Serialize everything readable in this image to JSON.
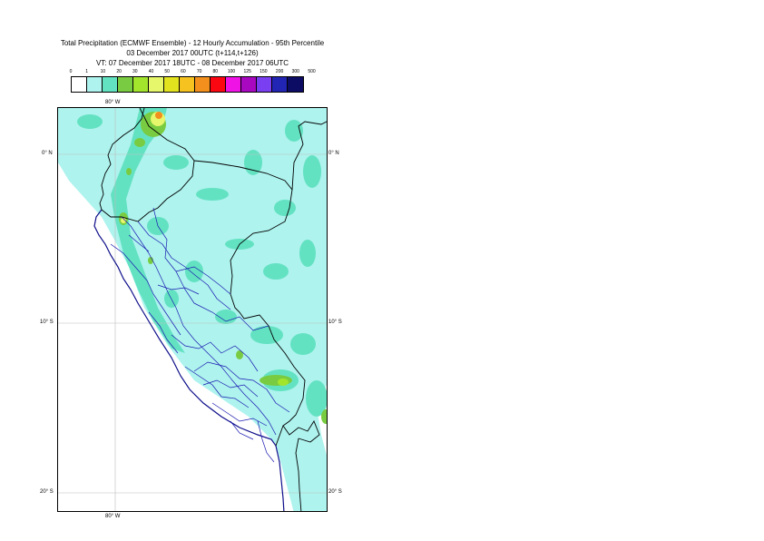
{
  "title": {
    "line1": "Total Precipitation (ECMWF Ensemble) - 12 Hourly Accumulation - 95th Percentile",
    "line2": "03 December 2017 00UTC (t+114,t+126)",
    "line3": "VT: 07 December 2017 18UTC - 08 December 2017 06UTC"
  },
  "legend": {
    "ticks": [
      "0",
      "1",
      "10",
      "20",
      "30",
      "40",
      "50",
      "60",
      "70",
      "80",
      "100",
      "125",
      "150",
      "200",
      "300",
      "500"
    ],
    "colors": [
      "#ffffff",
      "#aef3ee",
      "#63e2c2",
      "#79cc41",
      "#a3e52d",
      "#e7f76b",
      "#e3e21f",
      "#f5c220",
      "#f38f1c",
      "#fa0712",
      "#f013e6",
      "#a808bf",
      "#7a3ff0",
      "#2225b3",
      "#0d0c64"
    ]
  },
  "map": {
    "lon_labels": {
      "top": "80° W",
      "bottom": "80° W"
    },
    "lat_labels": {
      "eq": "0° N",
      "ten_s": "10° S",
      "twenty_s": "20° S"
    }
  }
}
